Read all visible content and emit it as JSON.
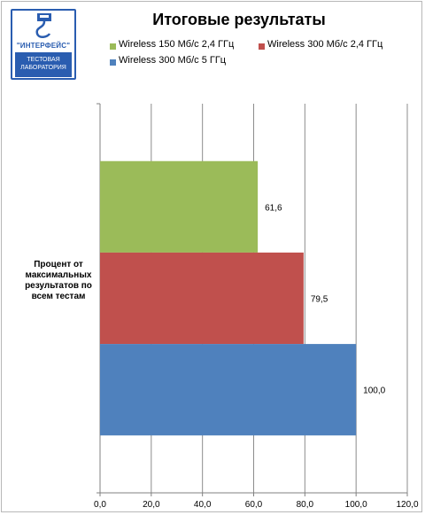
{
  "chart_data": {
    "type": "bar",
    "orientation": "horizontal",
    "title": "Итоговые результаты",
    "categories": [
      "Процент от максимальных результатов по всем тестам"
    ],
    "series": [
      {
        "name": "Wireless 150 Мб/с  2,4 ГГц",
        "values": [
          61.6
        ],
        "label": "61,6",
        "color": "#9bbb59"
      },
      {
        "name": "Wireless 300 Мб/с  2,4 ГГц",
        "values": [
          79.5
        ],
        "label": "79,5",
        "color": "#c0504d"
      },
      {
        "name": "Wireless 300 Мб/с  5 ГГц",
        "values": [
          100.0
        ],
        "label": "100,0",
        "color": "#4f81bd"
      }
    ],
    "xlim": [
      0,
      120
    ],
    "ticks": [
      "0,0",
      "20,0",
      "40,0",
      "60,0",
      "80,0",
      "100,0",
      "120,0"
    ],
    "tick_values": [
      0,
      20,
      40,
      60,
      80,
      100,
      120
    ],
    "grid": true,
    "legend_position": "top"
  },
  "logo": {
    "name": "\"ИНТЕРФЕЙС\"",
    "line1": "ТЕСТОВАЯ",
    "line2": "ЛАБОРАТОРИЯ"
  }
}
